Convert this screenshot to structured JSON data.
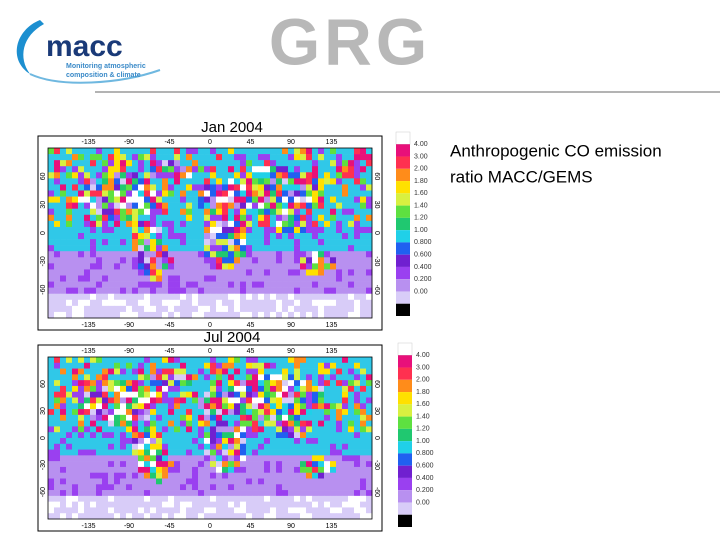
{
  "header": {
    "logo_text": "macc",
    "logo_tagline_1": "Monitoring atmospheric",
    "logo_tagline_2": "composition & climate",
    "partner_logo": "GRG"
  },
  "caption": {
    "line_1": "Anthropogenic CO emission",
    "line_2": "ratio MACC/GEMS"
  },
  "panels": [
    {
      "title": "Jan 2004"
    },
    {
      "title": "Jul 2004"
    }
  ],
  "map_axes": {
    "lon_ticks": [
      "-135",
      "-90",
      "-45",
      "0",
      "45",
      "90",
      "135"
    ],
    "lat_ticks": [
      "60",
      "30",
      "0",
      "-30",
      "-60"
    ]
  },
  "colorbar": {
    "labels": [
      "4.00",
      "3.00",
      "2.00",
      "1.80",
      "1.60",
      "1.40",
      "1.20",
      "1.00",
      "0.800",
      "0.600",
      "0.400",
      "0.200",
      "0.00"
    ],
    "colors": [
      "#e8107a",
      "#ff3050",
      "#ff8c1a",
      "#ffe000",
      "#d8f040",
      "#5ee040",
      "#20c870",
      "#20d0e8",
      "#2060f0",
      "#7020d0",
      "#9a40f0",
      "#b890f0",
      "#d8ccf8"
    ]
  }
}
